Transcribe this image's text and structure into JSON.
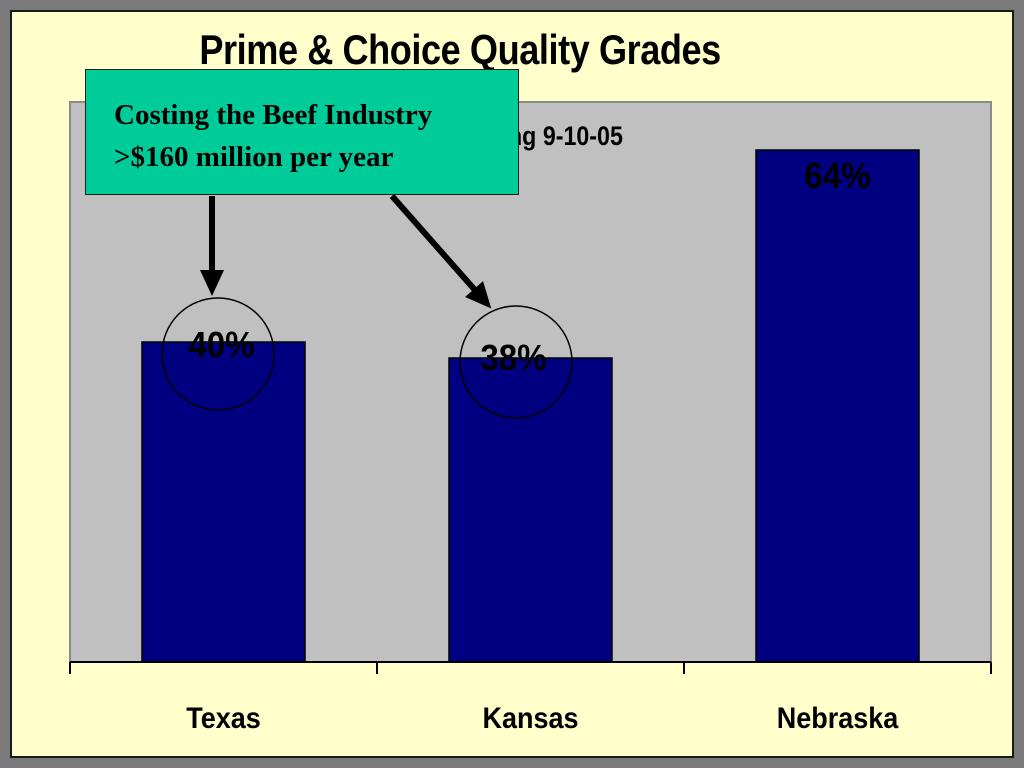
{
  "slide": {
    "title": "Prime & Choice Quality Grades",
    "subtitle_visible": "ng 9-10-05"
  },
  "callout": {
    "line1": "Costing the Beef Industry",
    "line2": ">$160 million per year",
    "color": "#00cc99"
  },
  "chart_data": {
    "type": "bar",
    "categories": [
      "Texas",
      "Kansas",
      "Nebraska"
    ],
    "values": [
      40,
      38,
      64
    ],
    "data_labels": [
      "40%",
      "38%",
      "64%"
    ],
    "ylim": [
      0,
      70
    ],
    "grid": false,
    "highlighted_categories": [
      "Texas",
      "Kansas"
    ],
    "colors": {
      "bar": "#000080",
      "plot_bg": "#c0c0c0",
      "slide_bg": "#ffffcc"
    }
  }
}
